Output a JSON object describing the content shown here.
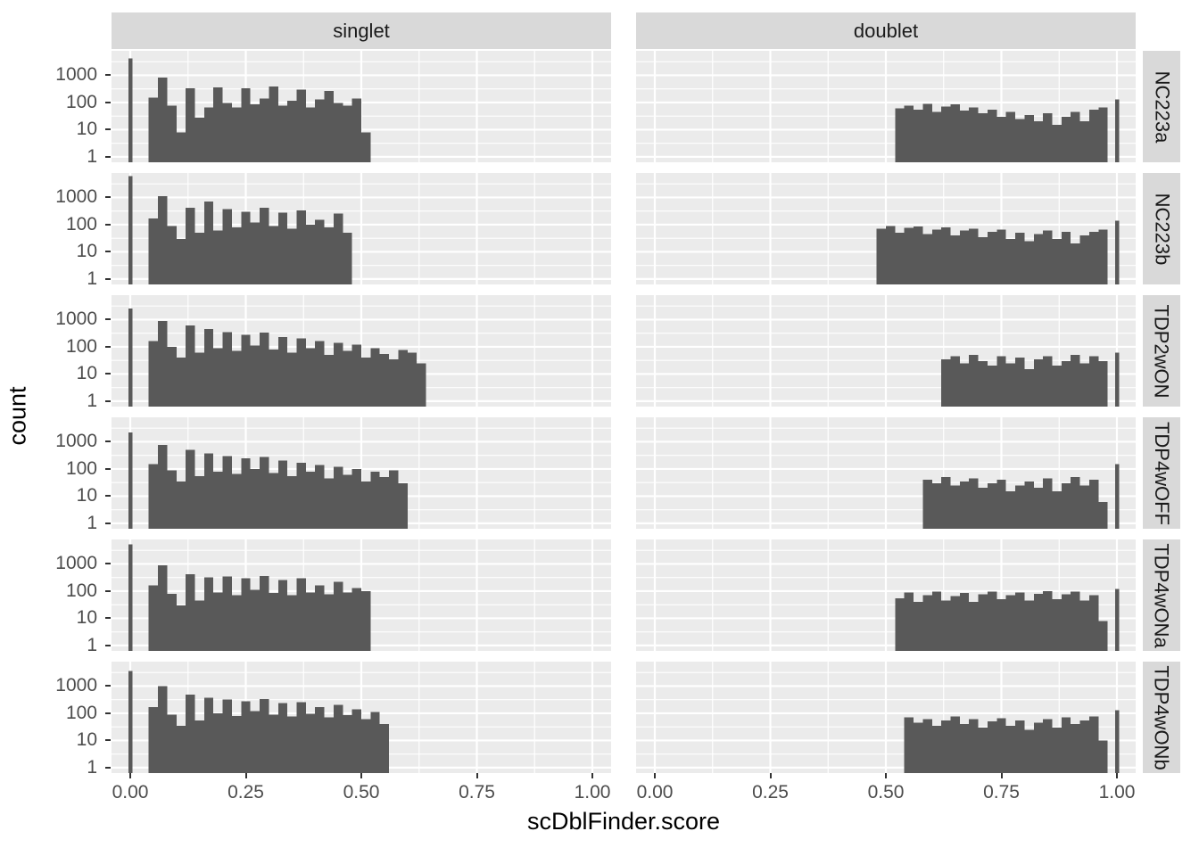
{
  "axes": {
    "x_title": "scDblFinder.score",
    "y_title": "count",
    "x_tick_labels": [
      "0.00",
      "0.25",
      "0.50",
      "0.75",
      "1.00"
    ],
    "x_tick_values": [
      0,
      0.25,
      0.5,
      0.75,
      1
    ],
    "x_minor_values": [
      0.125,
      0.375,
      0.625,
      0.875
    ],
    "y_tick_labels": [
      "1000",
      "100",
      "10",
      "1"
    ],
    "y_tick_values": [
      1000,
      100,
      10,
      1
    ],
    "y_minor_values": [
      3162,
      316,
      31.6,
      3.16
    ]
  },
  "facets": {
    "cols": [
      "singlet",
      "doublet"
    ],
    "rows": [
      "NC223a",
      "NC223b",
      "TDP2wON",
      "TDP4wOFF",
      "TDP4wONa",
      "TDP4wONb"
    ]
  },
  "style": {
    "bar_color": "#595959",
    "panel_bg": "#EBEBEB",
    "strip_bg": "#D9D9D9",
    "grid_color": "#FFFFFF",
    "tick_label_color": "#4D4D4D",
    "tick_mark_color": "#333333"
  },
  "chart_data": {
    "type": "bar",
    "subtype": "faceted-histogram",
    "x_domain": [
      0,
      1
    ],
    "y_scale": "log10",
    "y_domain_log10": [
      -0.2,
      3.9
    ],
    "grid": "on",
    "facet_cols": [
      "singlet",
      "doublet"
    ],
    "facet_rows": [
      "NC223a",
      "NC223b",
      "TDP2wON",
      "TDP4wOFF",
      "TDP4wONa",
      "TDP4wONb"
    ],
    "binwidth": 0.02,
    "panels": [
      {
        "row": "NC223a",
        "col": "singlet",
        "start": 0.04,
        "zero_spike": 4200,
        "one_spike": null,
        "counts": [
          150,
          820,
          75,
          8,
          330,
          28,
          65,
          360,
          95,
          65,
          330,
          85,
          140,
          390,
          75,
          115,
          300,
          65,
          130,
          270,
          95,
          75,
          140,
          8
        ]
      },
      {
        "row": "NC223a",
        "col": "doublet",
        "start": 0.52,
        "zero_spike": null,
        "one_spike": 130,
        "counts": [
          60,
          75,
          55,
          90,
          45,
          70,
          85,
          50,
          65,
          40,
          55,
          30,
          45,
          25,
          35,
          20,
          40,
          15,
          30,
          45,
          20,
          55,
          65
        ]
      },
      {
        "row": "NC223b",
        "col": "singlet",
        "start": 0.04,
        "zero_spike": 6000,
        "one_spike": null,
        "counts": [
          170,
          1100,
          90,
          30,
          420,
          50,
          700,
          60,
          380,
          80,
          300,
          120,
          420,
          90,
          280,
          70,
          330,
          100,
          150,
          80,
          260,
          50
        ]
      },
      {
        "row": "NC223b",
        "col": "doublet",
        "start": 0.48,
        "zero_spike": null,
        "one_spike": 140,
        "counts": [
          70,
          90,
          50,
          75,
          85,
          45,
          65,
          80,
          40,
          60,
          70,
          35,
          55,
          65,
          30,
          50,
          25,
          45,
          60,
          30,
          55,
          20,
          40,
          55,
          65
        ]
      },
      {
        "row": "TDP2wON",
        "col": "singlet",
        "start": 0.04,
        "zero_spike": 2600,
        "one_spike": null,
        "counts": [
          160,
          900,
          100,
          40,
          600,
          60,
          450,
          90,
          350,
          70,
          280,
          110,
          330,
          80,
          230,
          60,
          200,
          90,
          160,
          50,
          140,
          70,
          120,
          40,
          90,
          55,
          35,
          75,
          60,
          25
        ]
      },
      {
        "row": "TDP2wON",
        "col": "doublet",
        "start": 0.62,
        "zero_spike": null,
        "one_spike": 60,
        "counts": [
          35,
          45,
          25,
          50,
          30,
          20,
          45,
          25,
          40,
          15,
          35,
          45,
          20,
          30,
          50,
          25,
          45,
          30
        ]
      },
      {
        "row": "TDP4wOFF",
        "col": "singlet",
        "start": 0.04,
        "zero_spike": 2200,
        "one_spike": null,
        "counts": [
          150,
          750,
          90,
          35,
          500,
          55,
          380,
          80,
          300,
          65,
          250,
          100,
          280,
          70,
          200,
          55,
          170,
          80,
          140,
          45,
          120,
          60,
          100,
          35,
          80,
          50,
          90,
          30
        ]
      },
      {
        "row": "TDP4wOFF",
        "col": "doublet",
        "start": 0.58,
        "zero_spike": null,
        "one_spike": 150,
        "counts": [
          40,
          30,
          50,
          25,
          35,
          45,
          20,
          30,
          40,
          15,
          25,
          35,
          20,
          45,
          15,
          30,
          50,
          25,
          40,
          6
        ]
      },
      {
        "row": "TDP4wONa",
        "col": "singlet",
        "start": 0.04,
        "zero_spike": 5200,
        "one_spike": null,
        "counts": [
          160,
          900,
          80,
          30,
          420,
          45,
          320,
          90,
          350,
          70,
          300,
          110,
          360,
          85,
          260,
          70,
          300,
          90,
          160,
          75,
          220,
          90,
          130,
          100
        ]
      },
      {
        "row": "TDP4wONa",
        "col": "doublet",
        "start": 0.52,
        "zero_spike": null,
        "one_spike": 120,
        "counts": [
          55,
          90,
          40,
          70,
          95,
          45,
          65,
          85,
          40,
          75,
          95,
          50,
          70,
          90,
          45,
          80,
          100,
          50,
          75,
          95,
          45,
          70,
          8
        ]
      },
      {
        "row": "TDP4wONb",
        "col": "singlet",
        "start": 0.04,
        "zero_spike": 3600,
        "one_spike": null,
        "counts": [
          170,
          1000,
          90,
          35,
          480,
          55,
          380,
          100,
          320,
          80,
          280,
          120,
          330,
          90,
          240,
          75,
          260,
          95,
          170,
          70,
          200,
          85,
          140,
          60,
          110,
          40
        ]
      },
      {
        "row": "TDP4wONb",
        "col": "doublet",
        "start": 0.54,
        "zero_spike": null,
        "one_spike": 130,
        "counts": [
          70,
          45,
          60,
          35,
          55,
          75,
          40,
          60,
          30,
          50,
          65,
          35,
          55,
          25,
          45,
          60,
          30,
          70,
          40,
          55,
          75,
          10
        ]
      }
    ]
  }
}
